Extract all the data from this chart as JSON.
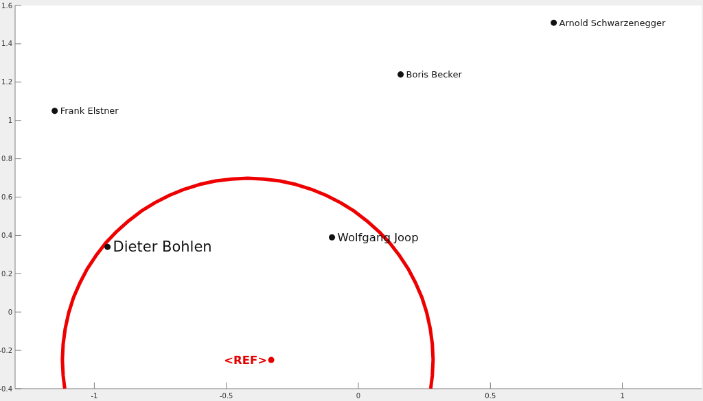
{
  "chart_data": {
    "type": "scatter",
    "xlim": [
      -1.3,
      1.3
    ],
    "ylim": [
      -0.4,
      1.6
    ],
    "xticks": [
      -1,
      -0.5,
      0,
      0.5,
      1
    ],
    "yticks": [
      -0.4,
      -0.2,
      0,
      0.2,
      0.4,
      0.6,
      0.8,
      1,
      1.2,
      1.4,
      1.6
    ],
    "grid": false,
    "marker": "circle",
    "series": [
      {
        "color": "#111111",
        "x": [
          -1.15,
          -0.95,
          -0.1,
          0.16,
          0.74
        ],
        "values": [
          1.05,
          0.34,
          0.39,
          1.24,
          1.51
        ],
        "value_labels": [
          "Frank Elstner",
          "Dieter Bohlen",
          "Wolfgang Joop",
          "Boris Becker",
          "Arnold Schwarzenegger"
        ]
      },
      {
        "color": "#e50000",
        "x": [
          -0.33
        ],
        "values": [
          -0.25
        ],
        "value_labels": [
          "<REF>"
        ]
      },
      {
        "type": "line",
        "marker": "none",
        "color": "#ee0000",
        "x": [
          0.274,
          0.28,
          0.283,
          0.28,
          0.272,
          0.259,
          0.241,
          0.217,
          0.189,
          0.156,
          0.119,
          0.077,
          0.032,
          -0.016,
          -0.068,
          -0.122,
          -0.179,
          -0.237,
          -0.297,
          -0.358,
          -0.419,
          -0.48,
          -0.541,
          -0.601,
          -0.659,
          -0.716,
          -0.77,
          -0.822,
          -0.87,
          -0.915,
          -0.957,
          -0.994,
          -1.027,
          -1.055,
          -1.079,
          -1.097,
          -1.11,
          -1.118,
          -1.121,
          -1.118,
          -1.112
        ],
        "values": [
          -0.4,
          -0.332,
          -0.249,
          -0.166,
          -0.085,
          -0.004,
          0.075,
          0.151,
          0.225,
          0.294,
          0.36,
          0.421,
          0.476,
          0.527,
          0.571,
          0.609,
          0.641,
          0.666,
          0.684,
          0.694,
          0.698,
          0.694,
          0.684,
          0.666,
          0.641,
          0.609,
          0.571,
          0.527,
          0.476,
          0.421,
          0.36,
          0.294,
          0.225,
          0.151,
          0.075,
          -0.004,
          -0.085,
          -0.166,
          -0.249,
          -0.332,
          -0.4
        ]
      }
    ]
  }
}
